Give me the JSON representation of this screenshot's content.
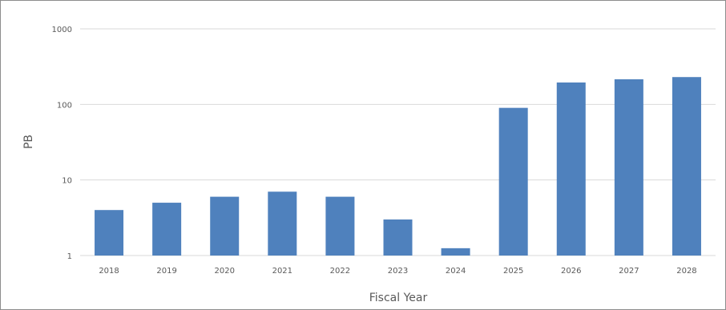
{
  "chart_data": {
    "type": "bar",
    "title": "",
    "xlabel": "Fiscal Year",
    "ylabel": "PB",
    "y_scale": "log",
    "ylim": [
      1,
      1000
    ],
    "y_ticks": [
      1,
      10,
      100,
      1000
    ],
    "y_tick_labels": [
      "1",
      "10",
      "100",
      "1000"
    ],
    "categories": [
      "2018",
      "2019",
      "2020",
      "2021",
      "2022",
      "2023",
      "2024",
      "2025",
      "2026",
      "2027",
      "2028"
    ],
    "values": [
      4,
      5,
      6,
      7,
      6,
      3,
      1.25,
      90,
      195,
      215,
      230
    ],
    "grid": true,
    "legend": "none",
    "bar_color": "#4f81bd",
    "grid_color": "#d9d9d9",
    "text_color": "#595959"
  }
}
